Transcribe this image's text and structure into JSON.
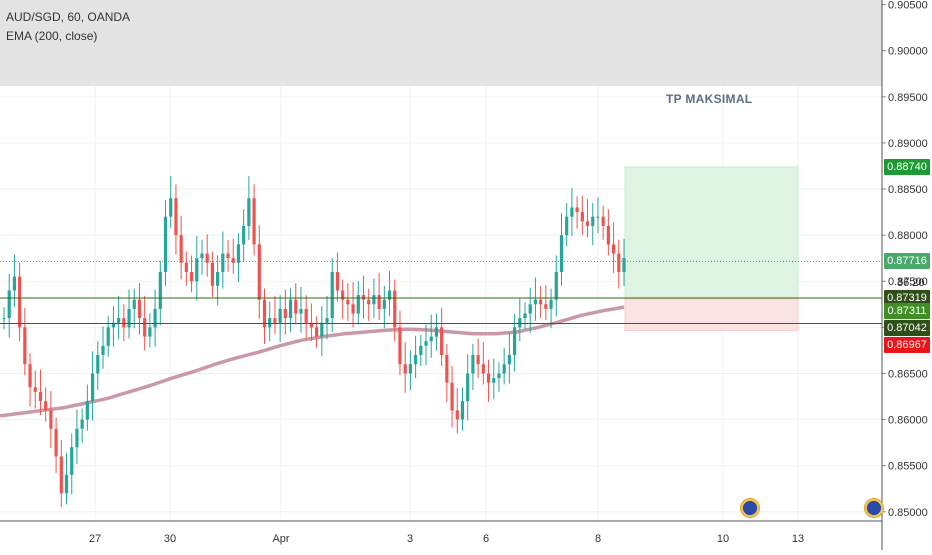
{
  "legend": {
    "symbol_line": "AUD/SGD, 60, OANDA",
    "indicator_line": "EMA (200, close)"
  },
  "annotation": {
    "tp_label": "TP MAKSIMAL"
  },
  "countdown": "36:20",
  "price_axis": {
    "ticks": [
      {
        "label": "0.90500",
        "value": 0.905
      },
      {
        "label": "0.90000",
        "value": 0.9
      },
      {
        "label": "0.89500",
        "value": 0.895
      },
      {
        "label": "0.89000",
        "value": 0.89
      },
      {
        "label": "0.88500",
        "value": 0.885
      },
      {
        "label": "0.88000",
        "value": 0.88
      },
      {
        "label": "0.87500",
        "value": 0.875
      },
      {
        "label": "0.87000",
        "value": 0.87
      },
      {
        "label": "0.86500",
        "value": 0.865
      },
      {
        "label": "0.86000",
        "value": 0.86
      },
      {
        "label": "0.85500",
        "value": 0.855
      },
      {
        "label": "0.85000",
        "value": 0.85
      }
    ],
    "badges": [
      {
        "label": "0.88740",
        "value": 0.8874,
        "color": "#1e9a35"
      },
      {
        "label": "0.87716",
        "value": 0.87716,
        "color": "#49a96b"
      },
      {
        "label": "0.87319",
        "value": 0.87319,
        "color": "#2f4f19"
      },
      {
        "label": "0.87311",
        "value": 0.87311,
        "color": "#3f8f26"
      },
      {
        "label": "0.87042",
        "value": 0.87042,
        "color": "#2f4f19"
      },
      {
        "label": "0.86967",
        "value": 0.86967,
        "color": "#e8161a"
      }
    ]
  },
  "time_axis": {
    "labels": [
      "27",
      "30",
      "Apr",
      "3",
      "6",
      "8",
      "10",
      "13"
    ]
  },
  "colors": {
    "up_candle": "#26a69a",
    "down_candle": "#ef5350",
    "ema": "#c99aa5",
    "profit_zone": "#dff3e2",
    "loss_zone": "#fbe2e3",
    "hline": "#2f6b16",
    "current_price_line": "#26a69a"
  },
  "chart_data": {
    "type": "candlestick",
    "symbol": "AUD/SGD",
    "timeframe": "60",
    "source": "OANDA",
    "ylim": [
      0.849,
      0.9055
    ],
    "x_categories": [
      "27",
      "30",
      "Apr",
      "3",
      "6",
      "8",
      "10",
      "13"
    ],
    "levels": {
      "take_profit": 0.8874,
      "last_price": 0.87716,
      "line_1": 0.87319,
      "entry": 0.87311,
      "line_2": 0.87042,
      "stop_loss": 0.86967
    },
    "price_path": [
      0.871,
      0.874,
      0.8755,
      0.87,
      0.866,
      0.8635,
      0.863,
      0.862,
      0.861,
      0.859,
      0.856,
      0.852,
      0.854,
      0.857,
      0.859,
      0.86,
      0.862,
      0.865,
      0.867,
      0.868,
      0.87,
      0.8705,
      0.871,
      0.87,
      0.872,
      0.873,
      0.871,
      0.869,
      0.87,
      0.872,
      0.876,
      0.882,
      0.884,
      0.88,
      0.877,
      0.876,
      0.875,
      0.8775,
      0.878,
      0.877,
      0.8745,
      0.876,
      0.878,
      0.8775,
      0.877,
      0.879,
      0.881,
      0.884,
      0.879,
      0.873,
      0.87,
      0.871,
      0.8705,
      0.872,
      0.871,
      0.873,
      0.8715,
      0.872,
      0.8705,
      0.87,
      0.869,
      0.8705,
      0.871,
      0.876,
      0.874,
      0.873,
      0.8725,
      0.8715,
      0.8735,
      0.873,
      0.8725,
      0.8735,
      0.872,
      0.873,
      0.874,
      0.87,
      0.866,
      0.865,
      0.866,
      0.867,
      0.868,
      0.8685,
      0.869,
      0.87,
      0.867,
      0.864,
      0.861,
      0.86,
      0.862,
      0.865,
      0.867,
      0.866,
      0.865,
      0.864,
      0.8645,
      0.865,
      0.866,
      0.867,
      0.87,
      0.871,
      0.8715,
      0.8725,
      0.873,
      0.8725,
      0.872,
      0.873,
      0.876,
      0.88,
      0.882,
      0.883,
      0.8825,
      0.8815,
      0.881,
      0.882,
      0.882,
      0.881,
      0.879,
      0.878,
      0.876,
      0.8775
    ],
    "ema_200": [
      0.8604,
      0.8607,
      0.861,
      0.8613,
      0.8618,
      0.8623,
      0.863,
      0.8637,
      0.8645,
      0.8652,
      0.866,
      0.8667,
      0.8673,
      0.868,
      0.8686,
      0.869,
      0.8693,
      0.8695,
      0.8697,
      0.8698,
      0.8697,
      0.8695,
      0.8693,
      0.8693,
      0.8695,
      0.87,
      0.8706,
      0.8713,
      0.8718,
      0.8722
    ]
  }
}
